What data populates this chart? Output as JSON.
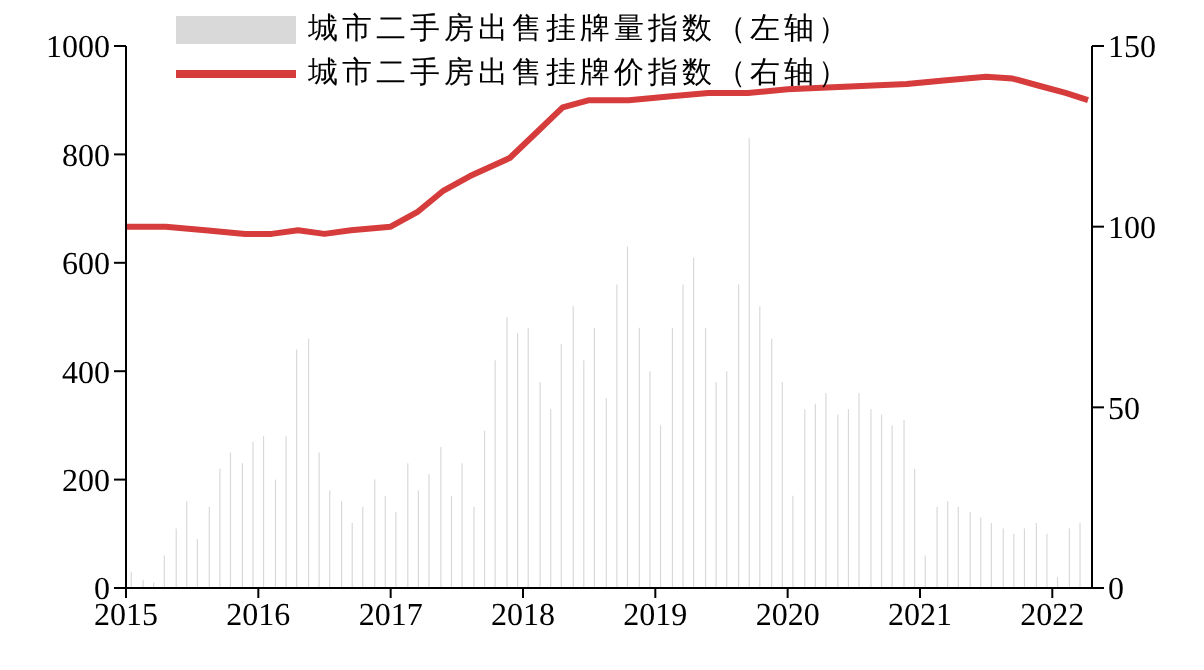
{
  "chart_data": {
    "type": "bar",
    "x": [
      2015.04,
      2015.13,
      2015.21,
      2015.29,
      2015.38,
      2015.46,
      2015.54,
      2015.63,
      2015.71,
      2015.79,
      2015.88,
      2015.96,
      2016.04,
      2016.13,
      2016.21,
      2016.29,
      2016.38,
      2016.46,
      2016.54,
      2016.63,
      2016.71,
      2016.79,
      2016.88,
      2016.96,
      2017.04,
      2017.13,
      2017.21,
      2017.29,
      2017.38,
      2017.46,
      2017.54,
      2017.63,
      2017.71,
      2017.79,
      2017.88,
      2017.96,
      2018.04,
      2018.13,
      2018.21,
      2018.29,
      2018.38,
      2018.46,
      2018.54,
      2018.63,
      2018.71,
      2018.79,
      2018.88,
      2018.96,
      2019.04,
      2019.13,
      2019.21,
      2019.29,
      2019.38,
      2019.46,
      2019.54,
      2019.63,
      2019.71,
      2019.79,
      2019.88,
      2019.96,
      2020.04,
      2020.13,
      2020.21,
      2020.29,
      2020.38,
      2020.46,
      2020.54,
      2020.63,
      2020.71,
      2020.79,
      2020.88,
      2020.96,
      2021.04,
      2021.13,
      2021.21,
      2021.29,
      2021.38,
      2021.46,
      2021.54,
      2021.63,
      2021.71,
      2021.79,
      2021.88,
      2021.96,
      2022.04,
      2022.13,
      2022.21
    ],
    "series": [
      {
        "name": "城市二手房出售挂牌量指数（左轴）",
        "color": "#d9d9d9",
        "values": [
          30,
          15,
          10,
          60,
          110,
          160,
          90,
          150,
          220,
          250,
          230,
          270,
          280,
          200,
          280,
          440,
          460,
          250,
          180,
          160,
          120,
          150,
          200,
          170,
          140,
          230,
          180,
          210,
          260,
          170,
          230,
          150,
          290,
          420,
          500,
          470,
          480,
          380,
          330,
          450,
          520,
          420,
          480,
          350,
          560,
          630,
          480,
          400,
          300,
          480,
          560,
          610,
          480,
          380,
          400,
          560,
          830,
          520,
          460,
          380,
          170,
          330,
          340,
          360,
          320,
          330,
          360,
          330,
          320,
          300,
          310,
          220,
          60,
          150,
          160,
          150,
          140,
          130,
          120,
          110,
          100,
          110,
          120,
          100,
          20,
          110,
          120
        ]
      },
      {
        "name": "城市二手房出售挂牌价指数（右轴）",
        "type": "line",
        "axis": "y2",
        "color": "#d63c3c",
        "x": [
          2015,
          2015.3,
          2015.6,
          2015.9,
          2016.1,
          2016.3,
          2016.5,
          2016.7,
          2017,
          2017.2,
          2017.4,
          2017.6,
          2017.9,
          2018.1,
          2018.3,
          2018.5,
          2018.8,
          2019.1,
          2019.4,
          2019.7,
          2020,
          2020.3,
          2020.6,
          2020.9,
          2021.2,
          2021.5,
          2021.7,
          2021.9,
          2022.1,
          2022.27
        ],
        "values": [
          100,
          100,
          99,
          98,
          98,
          99,
          98,
          99,
          100,
          104,
          110,
          114,
          119,
          126,
          133,
          135,
          135,
          136,
          137,
          137,
          138,
          138.5,
          139,
          139.5,
          140.5,
          141.5,
          141,
          139,
          137,
          135
        ]
      }
    ],
    "ylim": [
      0,
      1000
    ],
    "yticks": [
      0,
      200,
      400,
      600,
      800,
      1000
    ],
    "y2lim": [
      0,
      150
    ],
    "y2ticks": [
      0,
      50,
      100,
      150
    ],
    "xlim": [
      2015,
      2022.3
    ],
    "xticks": [
      2015,
      2016,
      2017,
      2018,
      2019,
      2020,
      2021,
      2022
    ],
    "legend": "top left"
  }
}
